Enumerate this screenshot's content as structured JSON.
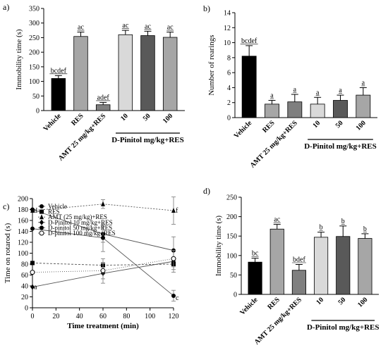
{
  "chart_data": [
    {
      "type": "bar",
      "panel": "a)",
      "ylabel": "Immobility time (s)",
      "ylim": [
        0,
        350
      ],
      "yticks": [
        0,
        50,
        100,
        150,
        200,
        250,
        300,
        350
      ],
      "categories": [
        "Vehicle",
        "RES",
        "AMT 25 mg/kg+RES",
        "10",
        "50",
        "100"
      ],
      "values": [
        110,
        254,
        20,
        260,
        257,
        251
      ],
      "errors": [
        10,
        15,
        8,
        15,
        15,
        18
      ],
      "letters": [
        "bcdef",
        "ac",
        "adef",
        "ac",
        "ac",
        "ac"
      ],
      "colors": [
        "#000000",
        "#a6a6a6",
        "#7f7f7f",
        "#d9d9d9",
        "#595959",
        "#a6a6a6"
      ],
      "group_label": "D-Pinitol mg/kg+RES"
    },
    {
      "type": "bar",
      "panel": "b)",
      "ylabel": "Number of rearings",
      "ylim": [
        0,
        14
      ],
      "yticks": [
        0,
        2,
        4,
        6,
        8,
        10,
        12,
        14
      ],
      "categories": [
        "Vehicle",
        "RES",
        "AMT 25 mg/kg+RES",
        "10",
        "50",
        "100"
      ],
      "values": [
        8.2,
        1.8,
        2.1,
        1.8,
        2.3,
        3.0
      ],
      "errors": [
        1.4,
        0.5,
        1.0,
        0.9,
        0.7,
        1.0
      ],
      "letters": [
        "bcdef",
        "a",
        "a",
        "a",
        "a",
        "a"
      ],
      "colors": [
        "#000000",
        "#a6a6a6",
        "#7f7f7f",
        "#d9d9d9",
        "#595959",
        "#a6a6a6"
      ],
      "group_label": "D-Pinitol mg/kg+RES"
    },
    {
      "type": "line",
      "panel": "c)",
      "xlabel": "Time treatment (min)",
      "ylabel": "Time on rotarod (s)",
      "xlim": [
        0,
        120
      ],
      "ylim": [
        0,
        200
      ],
      "xticks": [
        0,
        20,
        40,
        60,
        80,
        100,
        120
      ],
      "yticks": [
        0,
        20,
        40,
        60,
        80,
        100,
        120,
        140,
        160,
        180,
        200
      ],
      "x": [
        0,
        60,
        120
      ],
      "series": [
        {
          "name": "Vehicle",
          "values": [
            180,
            135,
            105
          ],
          "marker": "circle",
          "dash": "",
          "errors": [
            0,
            15,
            25
          ]
        },
        {
          "name": "RES",
          "values": [
            82,
            78,
            80
          ],
          "marker": "square",
          "dash": "3 2",
          "errors": [
            0,
            12,
            10
          ]
        },
        {
          "name": "AMT (25 mg/kg)+RES",
          "values": [
            178,
            190,
            178
          ],
          "marker": "triangle",
          "dash": "2 2",
          "errors": [
            0,
            8,
            25
          ]
        },
        {
          "name": "D-Pinitol 10 mg/kg+RES",
          "values": [
            38,
            63,
            85
          ],
          "marker": "diamond",
          "dash": "",
          "errors": [
            0,
            18,
            20
          ]
        },
        {
          "name": "D-pinitol 50 mg/kg+RES",
          "values": [
            145,
            128,
            22
          ],
          "marker": "circle",
          "dash": "",
          "errors": [
            0,
            25,
            10
          ]
        },
        {
          "name": "D-pinitol 100 mg/kg+RES",
          "values": [
            65,
            68,
            90
          ],
          "marker": "circle-open",
          "dash": "1 2",
          "errors": [
            0,
            15,
            15
          ]
        }
      ],
      "annotations": [
        {
          "text": "d",
          "x": 0,
          "y": 178
        },
        {
          "text": "a",
          "x": 0,
          "y": 38
        },
        {
          "text": "f",
          "x": 120,
          "y": 178
        },
        {
          "text": "c",
          "x": 120,
          "y": 18
        }
      ]
    },
    {
      "type": "bar",
      "panel": "d)",
      "ylabel": "Immobility time (s)",
      "ylim": [
        0,
        250
      ],
      "yticks": [
        0,
        50,
        100,
        150,
        200,
        250
      ],
      "categories": [
        "Vehicle",
        "RES",
        "AMT 25 mg/kg+RES",
        "10",
        "50",
        "100"
      ],
      "values": [
        83,
        168,
        62,
        147,
        149,
        144
      ],
      "errors": [
        10,
        12,
        15,
        13,
        27,
        12
      ],
      "letters": [
        "bc",
        "ac",
        "bdef",
        "b",
        "b",
        "b"
      ],
      "colors": [
        "#000000",
        "#a6a6a6",
        "#7f7f7f",
        "#d9d9d9",
        "#595959",
        "#a6a6a6"
      ],
      "group_label": "D-Pinitol mg/kg+RES"
    }
  ]
}
